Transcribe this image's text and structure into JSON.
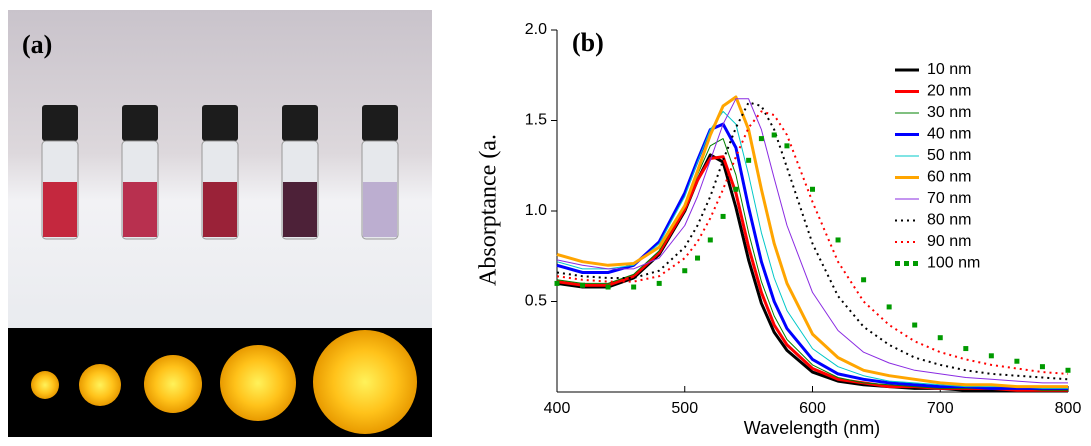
{
  "photo": {
    "label": "(a)"
  },
  "chart_data": {
    "type": "line",
    "panel_label": "(b)",
    "x_label": "Wavelength (nm)",
    "y_label": "Absorptance (a.",
    "x": [
      400,
      420,
      440,
      460,
      480,
      500,
      510,
      520,
      530,
      540,
      550,
      560,
      570,
      580,
      600,
      620,
      640,
      660,
      680,
      700,
      720,
      740,
      760,
      780,
      800
    ],
    "xlim": [
      400,
      800
    ],
    "xticks": [
      400,
      500,
      600,
      700,
      800
    ],
    "ylim": [
      0,
      2
    ],
    "yticks": [
      {
        "value": 0.5,
        "label": "0.5"
      },
      {
        "value": 1,
        "label": "1.0"
      },
      {
        "value": 1.5,
        "label": "1.5"
      },
      {
        "value": 2,
        "label": "2.0"
      }
    ],
    "legend": "upper right",
    "series": [
      {
        "name": "10 nm",
        "color": "#000000",
        "style": "solid",
        "width": 3,
        "values": [
          0.6,
          0.58,
          0.58,
          0.63,
          0.76,
          1.0,
          1.17,
          1.31,
          1.27,
          1.02,
          0.73,
          0.49,
          0.33,
          0.23,
          0.11,
          0.06,
          0.04,
          0.03,
          0.02,
          0.02,
          0.01,
          0.01,
          0.01,
          0.01,
          0.01
        ]
      },
      {
        "name": "20 nm",
        "color": "#ff0000",
        "style": "solid",
        "width": 3,
        "values": [
          0.61,
          0.59,
          0.59,
          0.64,
          0.77,
          1.01,
          1.17,
          1.29,
          1.3,
          1.1,
          0.8,
          0.55,
          0.37,
          0.26,
          0.13,
          0.07,
          0.05,
          0.03,
          0.03,
          0.02,
          0.02,
          0.02,
          0.01,
          0.01,
          0.01
        ]
      },
      {
        "name": "30 nm",
        "color": "#008000",
        "style": "solid",
        "width": 1,
        "values": [
          0.62,
          0.6,
          0.6,
          0.65,
          0.78,
          1.03,
          1.2,
          1.36,
          1.4,
          1.2,
          0.88,
          0.61,
          0.42,
          0.29,
          0.15,
          0.08,
          0.05,
          0.04,
          0.03,
          0.02,
          0.02,
          0.02,
          0.02,
          0.01,
          0.01
        ]
      },
      {
        "name": "40 nm",
        "color": "#0000ff",
        "style": "solid",
        "width": 3,
        "values": [
          0.7,
          0.66,
          0.66,
          0.7,
          0.83,
          1.1,
          1.28,
          1.45,
          1.48,
          1.35,
          1.02,
          0.72,
          0.5,
          0.35,
          0.18,
          0.1,
          0.07,
          0.05,
          0.04,
          0.03,
          0.03,
          0.02,
          0.02,
          0.02,
          0.02
        ]
      },
      {
        "name": "50 nm",
        "color": "#00c8c8",
        "style": "solid",
        "width": 1,
        "values": [
          0.72,
          0.68,
          0.68,
          0.7,
          0.82,
          1.08,
          1.27,
          1.45,
          1.55,
          1.48,
          1.2,
          0.88,
          0.63,
          0.45,
          0.24,
          0.14,
          0.09,
          0.06,
          0.05,
          0.04,
          0.03,
          0.03,
          0.03,
          0.02,
          0.02
        ]
      },
      {
        "name": "60 nm",
        "color": "#ffa500",
        "style": "solid",
        "width": 3,
        "values": [
          0.76,
          0.72,
          0.7,
          0.71,
          0.8,
          1.03,
          1.22,
          1.42,
          1.58,
          1.63,
          1.45,
          1.12,
          0.82,
          0.6,
          0.32,
          0.19,
          0.12,
          0.09,
          0.07,
          0.05,
          0.04,
          0.04,
          0.03,
          0.03,
          0.03
        ]
      },
      {
        "name": "70 nm",
        "color": "#8a2be2",
        "style": "solid",
        "width": 1,
        "values": [
          0.73,
          0.7,
          0.68,
          0.68,
          0.74,
          0.92,
          1.08,
          1.28,
          1.48,
          1.62,
          1.62,
          1.45,
          1.18,
          0.92,
          0.55,
          0.34,
          0.22,
          0.16,
          0.12,
          0.1,
          0.08,
          0.07,
          0.06,
          0.05,
          0.05
        ]
      },
      {
        "name": "80 nm",
        "color": "#000000",
        "style": "dotted",
        "width": 2,
        "values": [
          0.66,
          0.64,
          0.63,
          0.63,
          0.67,
          0.8,
          0.92,
          1.08,
          1.28,
          1.46,
          1.6,
          1.58,
          1.45,
          1.24,
          0.82,
          0.53,
          0.36,
          0.26,
          0.19,
          0.15,
          0.12,
          0.1,
          0.09,
          0.08,
          0.07
        ]
      },
      {
        "name": "90 nm",
        "color": "#ff0000",
        "style": "dotted",
        "width": 2,
        "values": [
          0.64,
          0.62,
          0.61,
          0.61,
          0.64,
          0.74,
          0.83,
          0.96,
          1.12,
          1.3,
          1.46,
          1.55,
          1.53,
          1.42,
          1.05,
          0.72,
          0.5,
          0.37,
          0.28,
          0.22,
          0.18,
          0.15,
          0.13,
          0.11,
          0.1
        ]
      },
      {
        "name": "100 nm",
        "color": "#009a00",
        "style": "squares",
        "width": 5,
        "values": [
          0.6,
          0.59,
          0.58,
          0.58,
          0.6,
          0.67,
          0.74,
          0.84,
          0.97,
          1.12,
          1.28,
          1.4,
          1.42,
          1.36,
          1.12,
          0.84,
          0.62,
          0.47,
          0.37,
          0.3,
          0.24,
          0.2,
          0.17,
          0.14,
          0.12
        ]
      }
    ]
  }
}
